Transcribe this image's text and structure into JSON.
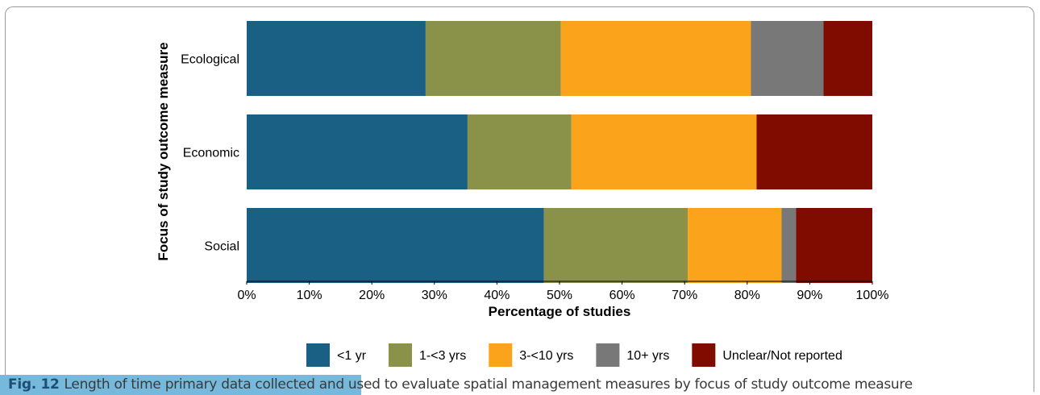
{
  "chart_data": {
    "type": "bar",
    "orientation": "horizontal",
    "stacked": true,
    "categories": [
      "Ecological",
      "Economic",
      "Social"
    ],
    "xlabel": "Percentage of studies",
    "ylabel": "Focus of study outcome measure",
    "xlim": [
      0,
      100
    ],
    "xticks": [
      "0%",
      "10%",
      "20%",
      "30%",
      "40%",
      "50%",
      "60%",
      "70%",
      "80%",
      "90%",
      "100%"
    ],
    "grid": false,
    "legend_position": "bottom",
    "series": [
      {
        "name": "<1 yr",
        "color": "#1a6085",
        "values": [
          28.6,
          35.3,
          47.5
        ]
      },
      {
        "name": "1-<3 yrs",
        "color": "#8a9148",
        "values": [
          21.6,
          16.6,
          23.0
        ]
      },
      {
        "name": "3-<10 yrs",
        "color": "#fca31c",
        "values": [
          30.4,
          29.6,
          15.0
        ]
      },
      {
        "name": "10+ yrs",
        "color": "#787878",
        "values": [
          11.6,
          0,
          2.3
        ]
      },
      {
        "name": "Unclear/Not reported",
        "color": "#800c00",
        "values": [
          7.8,
          18.5,
          12.2
        ]
      }
    ]
  },
  "caption": {
    "label": "Fig. 12",
    "text": "Length of time primary data collected and used to evaluate spatial management measures by focus of study outcome measure"
  }
}
